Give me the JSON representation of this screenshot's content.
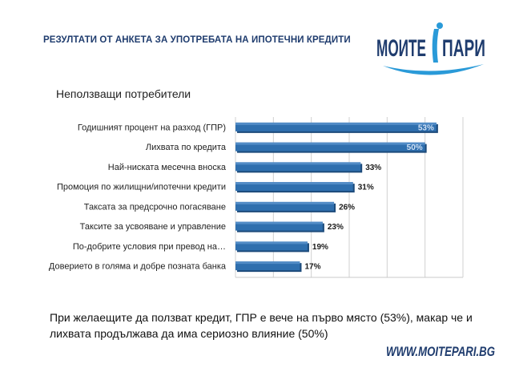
{
  "header": {
    "title": "РЕЗУЛТАТИ ОТ АНКЕТА ЗА УПОТРЕБАТА НА ИПОТЕЧНИ КРЕДИТИ"
  },
  "logo": {
    "text": "МОИТЕ ПАРИ",
    "part1": "МОИТЕ",
    "part2": "ПАРИ"
  },
  "chart_data": {
    "type": "bar",
    "orientation": "horizontal",
    "title": "Неползващи потребители",
    "categories": [
      "Годишният процент на разход (ГПР)",
      "Лихвата по кредита",
      "Най-ниската месечна вноска",
      "Промоция по жилищни/ипотечни кредити",
      "Таксата за предсрочно погасяване",
      "Таксите за усвояване и управление",
      "По-добрите условия при превод на…",
      "Доверието в голяма и добре позната банка"
    ],
    "values": [
      53,
      50,
      33,
      31,
      26,
      23,
      19,
      17
    ],
    "labels": [
      "53%",
      "50%",
      "33%",
      "31%",
      "26%",
      "23%",
      "19%",
      "17%"
    ],
    "xlim": [
      0,
      60
    ],
    "grid": true,
    "bar_color": "#2f6fae",
    "label_color": "#1a1a1a",
    "label_inside_color": "#cfe0f5"
  },
  "summary": {
    "text": "При желаещите да ползват кредит, ГПР е вече на първо място (53%), макар че и лихвата продължава да има сериозно влияние (50%)"
  },
  "footer": {
    "url": "WWW.MOITEPARI.BG"
  }
}
